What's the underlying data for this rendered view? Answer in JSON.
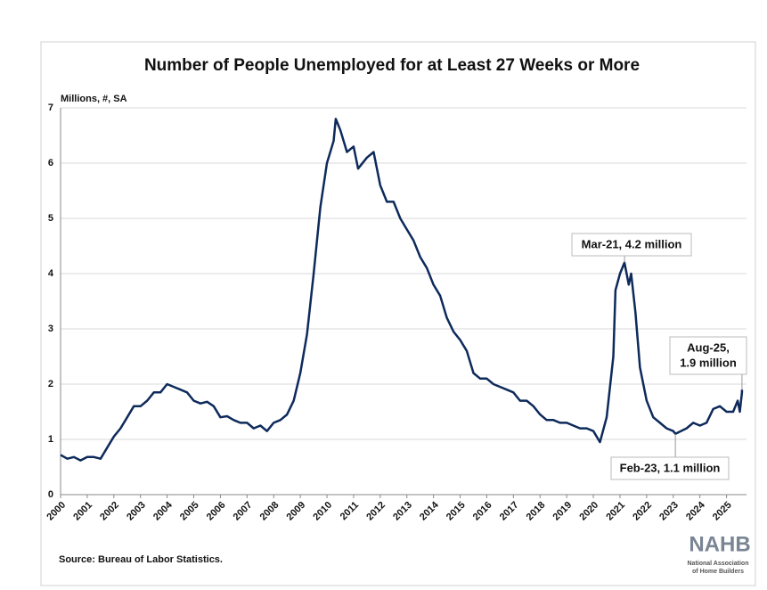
{
  "chart_data": {
    "type": "line",
    "title": "Number of People Unemployed for at Least 27 Weeks or More",
    "y_label": "Millions, #, SA",
    "source": "Source: Bureau of Labor Statistics.",
    "logo": {
      "name": "NAHB",
      "subtitle": [
        "National Association",
        "of Home Builders"
      ]
    },
    "color": "#0d2a5b",
    "x": [
      2000,
      2000.25,
      2000.5,
      2000.75,
      2001,
      2001.25,
      2001.5,
      2001.75,
      2002,
      2002.25,
      2002.5,
      2002.75,
      2003,
      2003.25,
      2003.5,
      2003.75,
      2004,
      2004.25,
      2004.5,
      2004.75,
      2005,
      2005.25,
      2005.5,
      2005.75,
      2006,
      2006.25,
      2006.5,
      2006.75,
      2007,
      2007.25,
      2007.5,
      2007.75,
      2008,
      2008.25,
      2008.5,
      2008.75,
      2009,
      2009.25,
      2009.5,
      2009.75,
      2010,
      2010.25,
      2010.33,
      2010.5,
      2010.75,
      2011,
      2011.17,
      2011.5,
      2011.75,
      2012,
      2012.25,
      2012.5,
      2012.75,
      2013,
      2013.25,
      2013.5,
      2013.75,
      2014,
      2014.25,
      2014.5,
      2014.75,
      2015,
      2015.25,
      2015.5,
      2015.75,
      2016,
      2016.25,
      2016.5,
      2016.75,
      2017,
      2017.25,
      2017.5,
      2017.75,
      2018,
      2018.25,
      2018.5,
      2018.75,
      2019,
      2019.25,
      2019.5,
      2019.75,
      2020,
      2020.25,
      2020.5,
      2020.75,
      2020.83,
      2021,
      2021.17,
      2021.33,
      2021.42,
      2021.58,
      2021.75,
      2022,
      2022.25,
      2022.5,
      2022.75,
      2023,
      2023.08,
      2023.5,
      2023.75,
      2024,
      2024.25,
      2024.5,
      2024.75,
      2025,
      2025.25,
      2025.42,
      2025.5,
      2025.58,
      2025.58
    ],
    "values": [
      0.72,
      0.65,
      0.68,
      0.62,
      0.68,
      0.68,
      0.65,
      0.85,
      1.05,
      1.2,
      1.4,
      1.6,
      1.6,
      1.7,
      1.85,
      1.85,
      2.0,
      1.95,
      1.9,
      1.85,
      1.7,
      1.65,
      1.68,
      1.6,
      1.4,
      1.42,
      1.35,
      1.3,
      1.3,
      1.2,
      1.25,
      1.15,
      1.3,
      1.35,
      1.45,
      1.7,
      2.2,
      2.9,
      4.0,
      5.2,
      6.0,
      6.4,
      6.8,
      6.6,
      6.2,
      6.3,
      5.9,
      6.1,
      6.2,
      5.6,
      5.3,
      5.3,
      5.0,
      4.8,
      4.6,
      4.3,
      4.1,
      3.8,
      3.6,
      3.2,
      2.95,
      2.8,
      2.6,
      2.2,
      2.1,
      2.1,
      2.0,
      1.95,
      1.9,
      1.85,
      1.7,
      1.7,
      1.6,
      1.45,
      1.35,
      1.35,
      1.3,
      1.3,
      1.25,
      1.2,
      1.2,
      1.15,
      0.95,
      1.4,
      2.5,
      3.7,
      4.0,
      4.2,
      3.8,
      4.0,
      3.3,
      2.3,
      1.7,
      1.4,
      1.3,
      1.2,
      1.15,
      1.1,
      1.2,
      1.3,
      1.25,
      1.3,
      1.55,
      1.6,
      1.5,
      1.5,
      1.7,
      1.5,
      1.85,
      1.9
    ],
    "xlim": [
      2000,
      2025.75
    ],
    "xticks": [
      2000,
      2001,
      2002,
      2003,
      2004,
      2005,
      2006,
      2007,
      2008,
      2009,
      2010,
      2011,
      2012,
      2013,
      2014,
      2015,
      2016,
      2017,
      2018,
      2019,
      2020,
      2021,
      2022,
      2023,
      2024,
      2025
    ],
    "ylim": [
      0,
      7
    ],
    "yticks": [
      0,
      1,
      2,
      3,
      4,
      5,
      6,
      7
    ],
    "grid": true,
    "annotations": [
      {
        "lines": [
          "Mar-21, 4.2 million"
        ],
        "x": 2021.17,
        "y": 4.2
      },
      {
        "lines": [
          "Aug-25,",
          "1.9 million"
        ],
        "x": 2025.58,
        "y": 1.9
      },
      {
        "lines": [
          "Feb-23, 1.1 million"
        ],
        "x": 2023.08,
        "y": 1.1
      }
    ]
  }
}
